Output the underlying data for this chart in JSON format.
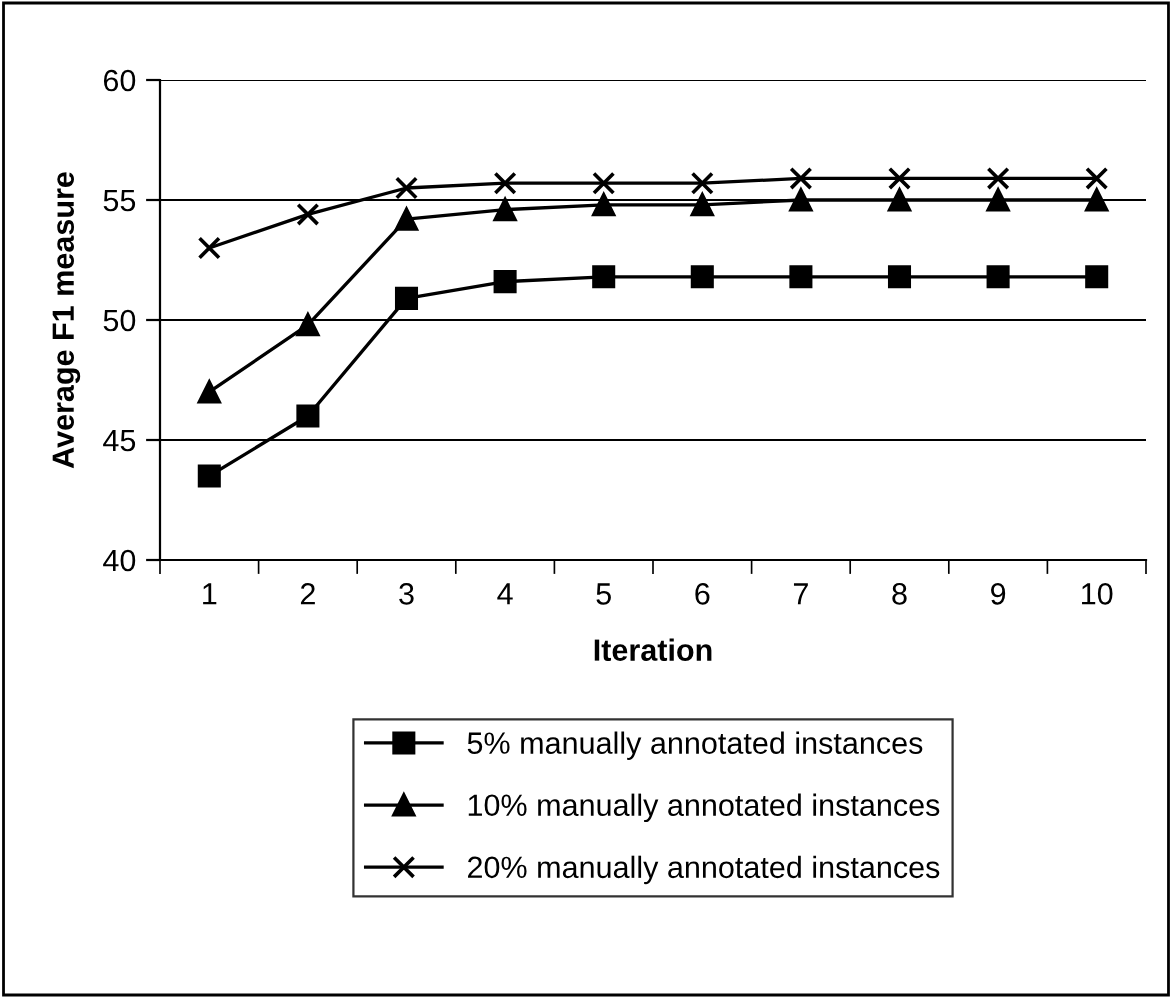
{
  "chart_data": {
    "type": "line",
    "xlabel": "Iteration",
    "ylabel": "Average F1 measure",
    "categories": [
      "1",
      "2",
      "3",
      "4",
      "5",
      "6",
      "7",
      "8",
      "9",
      "10"
    ],
    "series": [
      {
        "name": "5% manually annotated instances",
        "color": "#000000",
        "marker": "square",
        "values": [
          43.5,
          46.0,
          50.9,
          51.6,
          51.8,
          51.8,
          51.8,
          51.8,
          51.8,
          51.8
        ]
      },
      {
        "name": "10% manually annotated instances",
        "color": "#000000",
        "marker": "triangle",
        "values": [
          47.0,
          49.8,
          54.2,
          54.6,
          54.8,
          54.8,
          55.0,
          55.0,
          55.0,
          55.0
        ]
      },
      {
        "name": "20% manually annotated instances",
        "color": "#000000",
        "marker": "cross",
        "values": [
          53.0,
          54.4,
          55.5,
          55.7,
          55.7,
          55.7,
          55.9,
          55.9,
          55.9,
          55.9
        ]
      }
    ],
    "ylim": [
      40,
      60
    ],
    "yticks": [
      40,
      45,
      50,
      55,
      60
    ],
    "grid": "y",
    "legend": "bottom",
    "line_style": "solid"
  }
}
